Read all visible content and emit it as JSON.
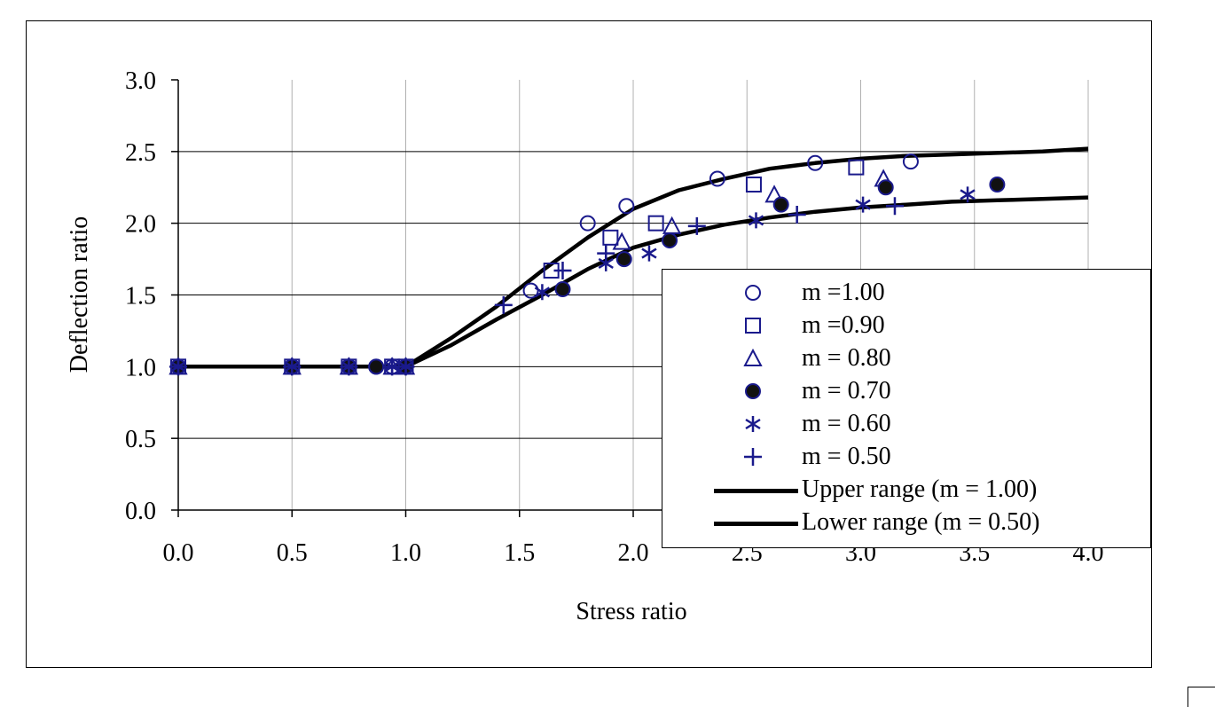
{
  "chart_data": {
    "type": "scatter",
    "xlabel": "Stress ratio",
    "ylabel": "Deflection ratio",
    "xlim": [
      0,
      4
    ],
    "ylim": [
      0,
      3
    ],
    "x_ticks": [
      "0.0",
      "0.5",
      "1.0",
      "1.5",
      "2.0",
      "2.5",
      "3.0",
      "3.5",
      "4.0"
    ],
    "y_ticks": [
      "0.0",
      "0.5",
      "1.0",
      "1.5",
      "2.0",
      "2.5",
      "3.0"
    ],
    "grid": "vertical lines at every x tick; horizontal lines at every y tick",
    "legend_position": "lower-right",
    "series_color": "#1a1a8c",
    "series": [
      {
        "name": "m =1.00",
        "marker": "circle-open",
        "points": [
          [
            0.0,
            1.0
          ],
          [
            0.5,
            1.0
          ],
          [
            0.75,
            1.0
          ],
          [
            0.87,
            1.0
          ],
          [
            0.94,
            1.0
          ],
          [
            1.0,
            1.0
          ],
          [
            1.55,
            1.53
          ],
          [
            1.8,
            2.0
          ],
          [
            1.97,
            2.12
          ],
          [
            2.37,
            2.31
          ],
          [
            2.8,
            2.42
          ],
          [
            3.22,
            2.43
          ]
        ]
      },
      {
        "name": "m =0.90",
        "marker": "square-open",
        "points": [
          [
            0.0,
            1.0
          ],
          [
            0.5,
            1.0
          ],
          [
            0.75,
            1.0
          ],
          [
            0.94,
            1.0
          ],
          [
            1.0,
            1.0
          ],
          [
            1.64,
            1.67
          ],
          [
            1.9,
            1.9
          ],
          [
            2.1,
            2.0
          ],
          [
            2.53,
            2.27
          ],
          [
            2.98,
            2.39
          ]
        ]
      },
      {
        "name": "m = 0.80",
        "marker": "triangle-open",
        "points": [
          [
            0.0,
            1.0
          ],
          [
            0.5,
            1.0
          ],
          [
            0.75,
            1.0
          ],
          [
            0.94,
            1.0
          ],
          [
            1.0,
            1.0
          ],
          [
            1.95,
            1.87
          ],
          [
            2.17,
            1.98
          ],
          [
            2.62,
            2.2
          ],
          [
            3.1,
            2.31
          ]
        ]
      },
      {
        "name": "m = 0.70",
        "marker": "circle-filled",
        "points": [
          [
            0.0,
            1.0
          ],
          [
            0.5,
            1.0
          ],
          [
            0.75,
            1.0
          ],
          [
            0.87,
            1.0
          ],
          [
            1.0,
            1.0
          ],
          [
            1.69,
            1.54
          ],
          [
            1.96,
            1.75
          ],
          [
            2.16,
            1.88
          ],
          [
            2.65,
            2.13
          ],
          [
            3.11,
            2.25
          ],
          [
            3.6,
            2.27
          ]
        ]
      },
      {
        "name": "m = 0.60",
        "marker": "asterisk",
        "points": [
          [
            0.0,
            1.0
          ],
          [
            0.5,
            1.0
          ],
          [
            0.75,
            1.0
          ],
          [
            0.94,
            1.0
          ],
          [
            1.0,
            1.0
          ],
          [
            1.6,
            1.52
          ],
          [
            1.88,
            1.72
          ],
          [
            2.07,
            1.79
          ],
          [
            2.54,
            2.02
          ],
          [
            3.01,
            2.13
          ],
          [
            3.47,
            2.2
          ]
        ]
      },
      {
        "name": "m = 0.50",
        "marker": "plus",
        "points": [
          [
            0.0,
            1.0
          ],
          [
            0.5,
            1.0
          ],
          [
            0.75,
            1.0
          ],
          [
            0.94,
            1.0
          ],
          [
            1.0,
            1.0
          ],
          [
            1.43,
            1.43
          ],
          [
            1.69,
            1.67
          ],
          [
            1.88,
            1.79
          ],
          [
            2.28,
            1.98
          ],
          [
            2.72,
            2.06
          ],
          [
            3.15,
            2.12
          ]
        ]
      }
    ],
    "lines": [
      {
        "name": "Upper range (m = 1.00)",
        "points": [
          [
            0.0,
            1.0
          ],
          [
            0.5,
            1.0
          ],
          [
            1.0,
            1.0
          ],
          [
            1.2,
            1.2
          ],
          [
            1.4,
            1.42
          ],
          [
            1.6,
            1.67
          ],
          [
            1.8,
            1.9
          ],
          [
            2.0,
            2.1
          ],
          [
            2.2,
            2.23
          ],
          [
            2.4,
            2.31
          ],
          [
            2.6,
            2.38
          ],
          [
            2.8,
            2.42
          ],
          [
            3.0,
            2.45
          ],
          [
            3.2,
            2.47
          ],
          [
            3.4,
            2.48
          ],
          [
            3.6,
            2.49
          ],
          [
            3.8,
            2.5
          ],
          [
            4.0,
            2.52
          ]
        ]
      },
      {
        "name": "Lower range (m = 0.50)",
        "points": [
          [
            0.0,
            1.0
          ],
          [
            0.5,
            1.0
          ],
          [
            1.0,
            1.0
          ],
          [
            1.2,
            1.15
          ],
          [
            1.4,
            1.33
          ],
          [
            1.6,
            1.5
          ],
          [
            1.8,
            1.68
          ],
          [
            2.0,
            1.83
          ],
          [
            2.2,
            1.92
          ],
          [
            2.4,
            1.99
          ],
          [
            2.6,
            2.04
          ],
          [
            2.8,
            2.08
          ],
          [
            3.0,
            2.11
          ],
          [
            3.2,
            2.13
          ],
          [
            3.4,
            2.15
          ],
          [
            3.6,
            2.16
          ],
          [
            3.8,
            2.17
          ],
          [
            4.0,
            2.18
          ]
        ]
      }
    ]
  }
}
